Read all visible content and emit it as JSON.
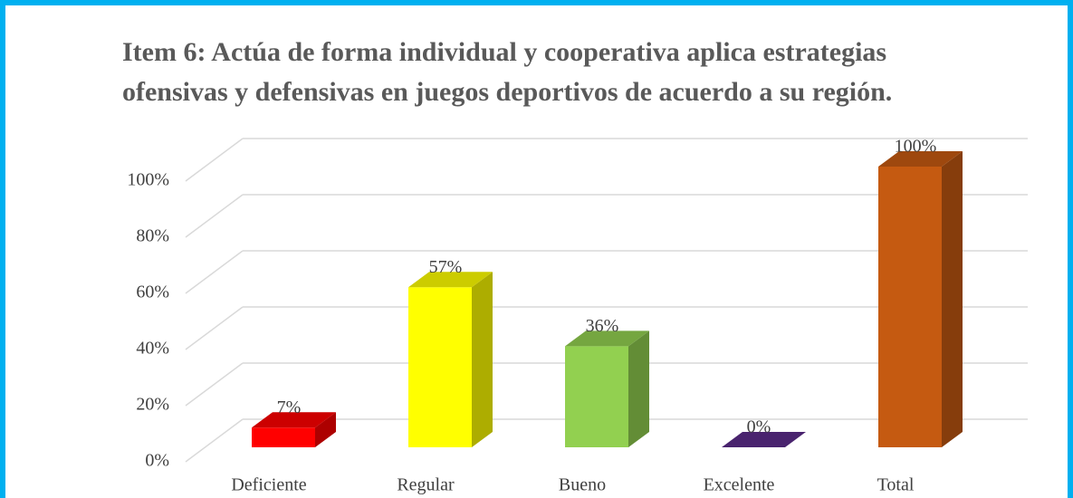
{
  "chart_data": {
    "type": "bar3d",
    "title": [
      "Item 6: Actúa de forma individual y cooperativa aplica estrategias",
      "ofensivas y defensivas en juegos deportivos de acuerdo a su región."
    ],
    "categories": [
      "Deficiente",
      "Regular",
      "Bueno",
      "Excelente",
      "Total"
    ],
    "values": [
      7,
      57,
      36,
      0,
      100
    ],
    "value_labels": [
      "7%",
      "57%",
      "36%",
      "0%",
      "100%"
    ],
    "colors": [
      "#ff0000",
      "#ffff00",
      "#92d050",
      "#5b2c8a",
      "#c55a11"
    ],
    "ylim": [
      0,
      100
    ],
    "yticks": [
      {
        "value": 0,
        "label": "0%"
      },
      {
        "value": 20,
        "label": "20%"
      },
      {
        "value": 40,
        "label": "40%"
      },
      {
        "value": 60,
        "label": "60%"
      },
      {
        "value": 80,
        "label": "80%"
      },
      {
        "value": 100,
        "label": "100%"
      }
    ],
    "grid": true
  }
}
